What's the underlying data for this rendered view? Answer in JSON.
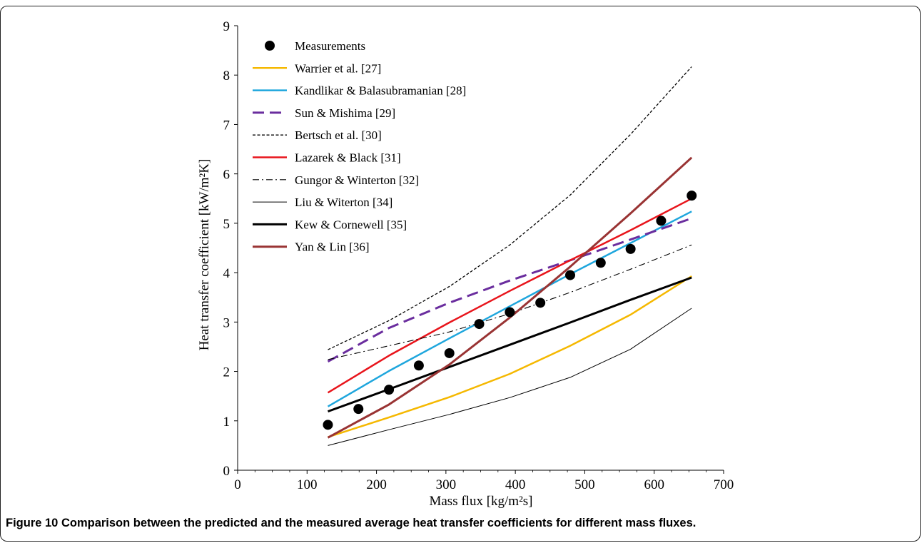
{
  "caption": {
    "label": "Figure 10",
    "text": "Comparison between the predicted and the measured average heat transfer coefficients for different mass fluxes."
  },
  "chart_data": {
    "type": "line",
    "xlabel": "Mass flux [kg/m²s]",
    "ylabel": "Heat transfer coefficient [kW/m²K]",
    "xlim": [
      0,
      700
    ],
    "ylim": [
      0,
      9
    ],
    "xticks": [
      0,
      100,
      200,
      300,
      400,
      500,
      600,
      700
    ],
    "yticks": [
      0,
      1,
      2,
      3,
      4,
      5,
      6,
      7,
      8,
      9
    ],
    "grid": false,
    "legend_position": "top-left",
    "measurements": {
      "name": "Measurements",
      "x": [
        130,
        174,
        218,
        261,
        305,
        348,
        392,
        436,
        479,
        523,
        566,
        610,
        654
      ],
      "y": [
        0.92,
        1.24,
        1.63,
        2.12,
        2.37,
        2.96,
        3.2,
        3.39,
        3.95,
        4.2,
        4.48,
        5.05,
        5.56
      ],
      "color": "#000000"
    },
    "series": [
      {
        "name": "Warrier et al. [27]",
        "color": "#f5b800",
        "style": "solid",
        "width": 2.5,
        "x": [
          130,
          218,
          305,
          392,
          479,
          566,
          654
        ],
        "y": [
          0.67,
          1.07,
          1.48,
          1.95,
          2.52,
          3.15,
          3.93
        ]
      },
      {
        "name": "Kandlikar & Balasubramanian [28]",
        "color": "#1ea6dd",
        "style": "solid",
        "width": 2.5,
        "x": [
          130,
          218,
          305,
          392,
          479,
          566,
          654
        ],
        "y": [
          1.29,
          2.01,
          2.67,
          3.32,
          3.97,
          4.6,
          5.24
        ]
      },
      {
        "name": "Sun & Mishima [29]",
        "color": "#6a2d9e",
        "style": "long-dash",
        "width": 3,
        "x": [
          130,
          218,
          305,
          392,
          479,
          566,
          654
        ],
        "y": [
          2.2,
          2.88,
          3.39,
          3.84,
          4.25,
          4.67,
          5.1
        ]
      },
      {
        "name": "Bertsch et al. [30]",
        "color": "#000000",
        "style": "short-dash",
        "width": 1.3,
        "x": [
          130,
          218,
          305,
          392,
          479,
          566,
          654
        ],
        "y": [
          2.44,
          3.03,
          3.72,
          4.56,
          5.57,
          6.8,
          8.17
        ]
      },
      {
        "name": "Lazarek & Black [31]",
        "color": "#e8141b",
        "style": "solid",
        "width": 2.5,
        "x": [
          130,
          218,
          305,
          392,
          479,
          566,
          654
        ],
        "y": [
          1.57,
          2.32,
          2.99,
          3.63,
          4.25,
          4.86,
          5.5
        ]
      },
      {
        "name": "Gungor & Winterton [32]",
        "color": "#000000",
        "style": "dash-dot",
        "width": 1.1,
        "x": [
          130,
          218,
          305,
          392,
          479,
          566,
          654
        ],
        "y": [
          2.24,
          2.52,
          2.8,
          3.17,
          3.6,
          4.07,
          4.56
        ]
      },
      {
        "name": "Liu & Witerton [34]",
        "color": "#000000",
        "style": "solid",
        "width": 1,
        "x": [
          130,
          218,
          305,
          392,
          479,
          566,
          654
        ],
        "y": [
          0.5,
          0.82,
          1.13,
          1.47,
          1.88,
          2.45,
          3.28
        ]
      },
      {
        "name": "Kew & Cornewell [35]",
        "color": "#000000",
        "style": "solid",
        "width": 3,
        "x": [
          130,
          218,
          305,
          392,
          479,
          566,
          654
        ],
        "y": [
          1.19,
          1.64,
          2.09,
          2.54,
          2.99,
          3.45,
          3.9
        ]
      },
      {
        "name": "Yan & Lin [36]",
        "color": "#993333",
        "style": "solid",
        "width": 3,
        "x": [
          130,
          218,
          305,
          392,
          479,
          566,
          654
        ],
        "y": [
          0.66,
          1.33,
          2.14,
          3.09,
          4.12,
          5.2,
          6.33
        ]
      }
    ]
  }
}
